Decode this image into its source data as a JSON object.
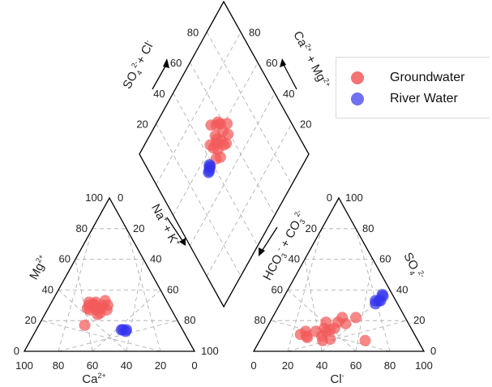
{
  "chart_data": {
    "type": "scatter",
    "subtype": "piper-diagram",
    "cation_triangle": {
      "corner_labels": {
        "bottom": "Ca2+",
        "left": "Mg2+",
        "right": "Na+ + K+"
      },
      "ticks": [
        "0",
        "20",
        "40",
        "60",
        "80",
        "100"
      ],
      "series": [
        {
          "name": "Groundwater",
          "points": [
            [
              43,
              25
            ],
            [
              48,
              27
            ],
            [
              42,
              32
            ],
            [
              47,
              30
            ],
            [
              44,
              31
            ],
            [
              45,
              29
            ],
            [
              49,
              28
            ],
            [
              46,
              32
            ],
            [
              43,
              29
            ],
            [
              44,
              27
            ],
            [
              38,
              27
            ],
            [
              45,
              24
            ],
            [
              41,
              28
            ],
            [
              39,
              30
            ],
            [
              56,
              17
            ],
            [
              36,
              30
            ],
            [
              36,
              33
            ],
            [
              44,
              30
            ]
          ]
        },
        {
          "name": "River Water",
          "points": [
            [
              34,
              13
            ],
            [
              35,
              14
            ],
            [
              36,
              14
            ],
            [
              33,
              14
            ]
          ]
        }
      ]
    },
    "anion_triangle": {
      "corner_labels": {
        "bottom": "Cl-",
        "left": "HCO3- + CO32-",
        "right": "SO42-"
      },
      "ticks": [
        "0",
        "20",
        "40",
        "60",
        "80",
        "100"
      ],
      "series": [
        {
          "name": "Groundwater",
          "points": [
            [
              24,
              13
            ],
            [
              30,
              13
            ],
            [
              36,
              13
            ],
            [
              22,
              11
            ],
            [
              26,
              10
            ],
            [
              37,
              7
            ],
            [
              35,
              10
            ],
            [
              38,
              14
            ],
            [
              40,
              15
            ],
            [
              45,
              18
            ],
            [
              49,
              22
            ],
            [
              27,
              9
            ],
            [
              33,
              19
            ],
            [
              41,
              22
            ],
            [
              41,
              8
            ],
            [
              34,
              15
            ],
            [
              62,
              7
            ],
            [
              40,
              19
            ]
          ]
        },
        {
          "name": "River Water",
          "points": [
            [
              55,
              33
            ],
            [
              57,
              33
            ],
            [
              56,
              31
            ],
            [
              58,
              36
            ],
            [
              57,
              37
            ],
            [
              58,
              33
            ]
          ]
        }
      ]
    },
    "diamond": {
      "axis_labels": {
        "upper_left": "SO42- + Cl-",
        "upper_right": "Ca2+ + Mg2+",
        "lower_left": "Na+ + K+",
        "lower_right": "HCO3- + CO32-"
      },
      "ticks": [
        "20",
        "40",
        "60",
        "80"
      ],
      "series": [
        {
          "name": "Groundwater",
          "points": [
            [
              52,
              67
            ],
            [
              55,
              64
            ],
            [
              45,
              61
            ],
            [
              53,
              56
            ],
            [
              55,
              52
            ],
            [
              57,
              64
            ],
            [
              48,
              55
            ],
            [
              44,
              53
            ],
            [
              49,
              58
            ],
            [
              51,
              59
            ],
            [
              47,
              51
            ],
            [
              62,
              58
            ],
            [
              58,
              62
            ],
            [
              53,
              53
            ],
            [
              59,
              54
            ],
            [
              51,
              61
            ],
            [
              46,
              58
            ],
            [
              57,
              58
            ]
          ]
        },
        {
          "name": "River Water",
          "points": [
            [
              37,
              54
            ],
            [
              35,
              53
            ],
            [
              38,
              54
            ],
            [
              38,
              55
            ],
            [
              36,
              53
            ]
          ]
        }
      ]
    },
    "legend": {
      "position": "top-right",
      "entries": [
        "Groundwater",
        "River Water"
      ]
    },
    "colors": {
      "Groundwater": "#f25a5a",
      "River Water": "#3333ee"
    },
    "grid": true
  }
}
